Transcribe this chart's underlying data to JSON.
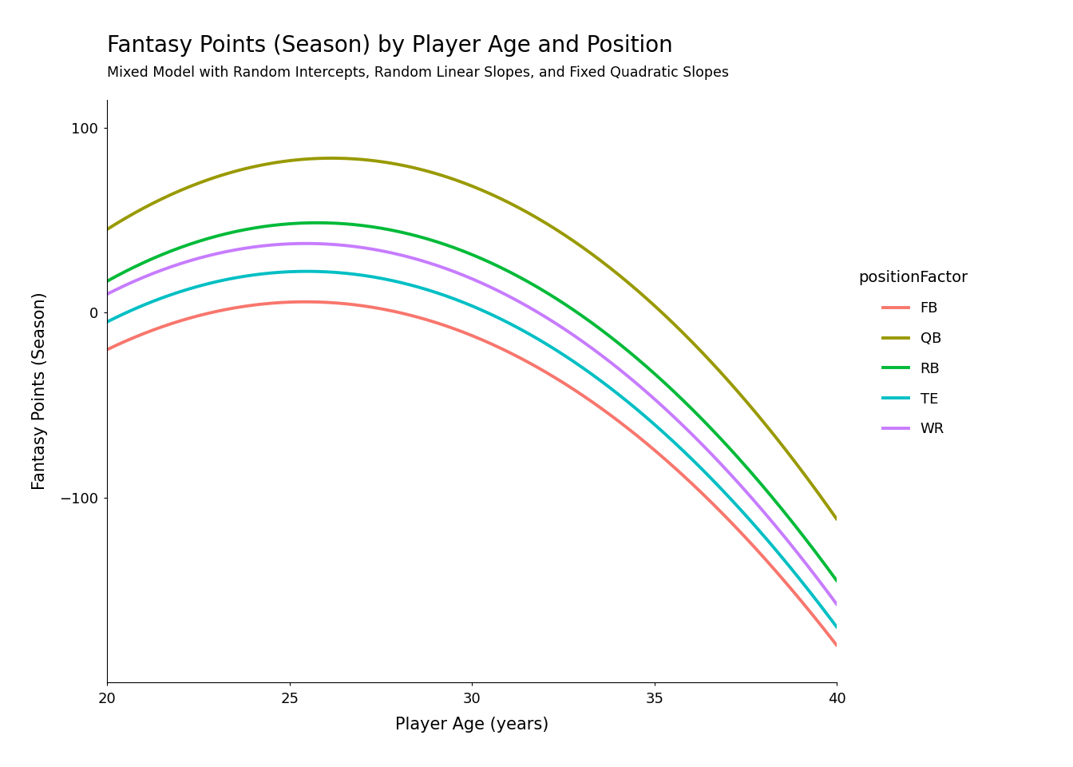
{
  "title": "Fantasy Points (Season) by Player Age and Position",
  "subtitle": "Mixed Model with Random Intercepts, Random Linear Slopes, and Fixed Quadratic Slopes",
  "xlabel": "Player Age (years)",
  "ylabel": "Fantasy Points (Season)",
  "xlim": [
    20,
    40
  ],
  "ylim": [
    -200,
    115
  ],
  "yticks": [
    100,
    0,
    -100
  ],
  "xticks": [
    20,
    25,
    30,
    35,
    40
  ],
  "age_range": [
    20,
    40
  ],
  "background_color": "#ffffff",
  "positions": [
    "FB",
    "QB",
    "RB",
    "TE",
    "WR"
  ],
  "colors": {
    "FB": "#F8766D",
    "QB": "#999900",
    "RB": "#00BA38",
    "TE": "#00BFC4",
    "WR": "#C77CFF"
  },
  "line_width": 2.8,
  "curves": {
    "QB": {
      "a0": 45,
      "a1": 12.5,
      "a2": -1.017
    },
    "RB": {
      "a0": 17,
      "a1": 10.957,
      "a2": -0.953
    },
    "WR": {
      "a0": 10,
      "a1": 10.029,
      "a2": -0.921
    },
    "TE": {
      "a0": -5,
      "a1": 9.964,
      "a2": -0.911
    },
    "FB": {
      "a0": -20,
      "a1": 9.5,
      "a2": -0.875
    }
  }
}
